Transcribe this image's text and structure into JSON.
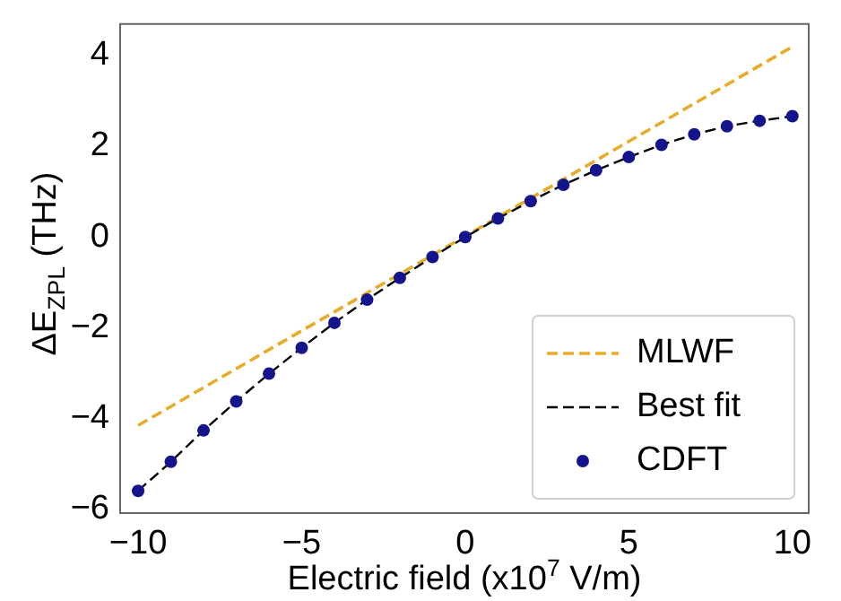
{
  "chart_data": {
    "type": "line",
    "xlabel": "Electric field (x10$^{7}$ V/m)",
    "ylabel": "ΔE$_{ZPL}$ (THz)",
    "xlim": [
      -10.55,
      10.5
    ],
    "ylim": [
      -6.08,
      4.69
    ],
    "xticks": [
      -10,
      -5,
      0,
      5,
      10
    ],
    "yticks": [
      -6,
      -4,
      -2,
      0,
      2,
      4
    ],
    "grid": false,
    "legend": "bottom right",
    "series": [
      {
        "name": "MLWF",
        "color": "#e6ac2a",
        "line_style": "dashed",
        "marker": "none",
        "x": [
          -10,
          10
        ],
        "values": [
          -4.15,
          4.19
        ]
      },
      {
        "name": "Best fit",
        "color": "#000000",
        "line_style": "dashed",
        "marker": "none",
        "x": [
          -10,
          -9,
          -8,
          -7,
          -6,
          -5,
          -4,
          -3,
          -2,
          -1,
          0,
          1,
          2,
          3,
          4,
          5,
          6,
          7,
          8,
          9,
          10
        ],
        "values": [
          -5.59,
          -4.95,
          -4.26,
          -3.62,
          -3.01,
          -2.44,
          -1.89,
          -1.38,
          -0.9,
          -0.44,
          0,
          0.41,
          0.79,
          1.15,
          1.47,
          1.76,
          2.03,
          2.26,
          2.44,
          2.56,
          2.66
        ]
      },
      {
        "name": "CDFT",
        "type": "scatter",
        "color": "#14148c",
        "marker": "circle",
        "x": [
          -10,
          -9,
          -8,
          -7,
          -6,
          -5,
          -4,
          -3,
          -2,
          -1,
          0,
          1,
          2,
          3,
          4,
          5,
          6,
          7,
          8,
          9,
          10
        ],
        "values": [
          -5.59,
          -4.95,
          -4.26,
          -3.62,
          -3.01,
          -2.44,
          -1.89,
          -1.38,
          -0.9,
          -0.44,
          0,
          0.41,
          0.79,
          1.15,
          1.47,
          1.76,
          2.03,
          2.26,
          2.44,
          2.56,
          2.66
        ]
      }
    ]
  }
}
